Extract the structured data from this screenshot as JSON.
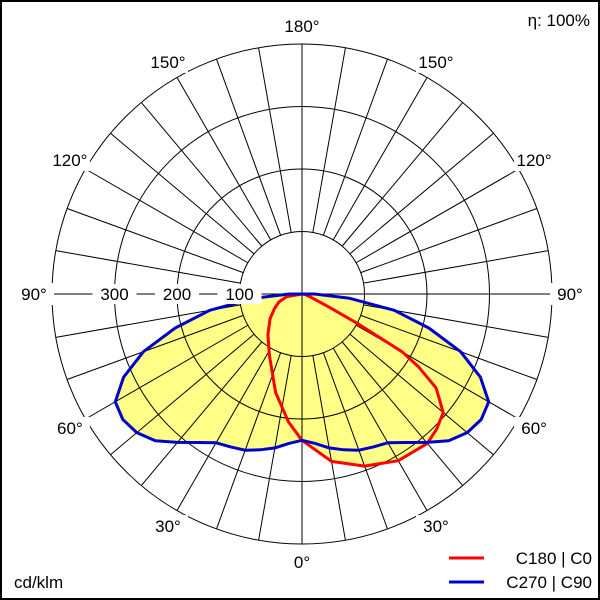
{
  "chart_data": {
    "type": "polar",
    "unit_label": "cd/klm",
    "efficiency_label": "η: 100%",
    "radial_ticks": [
      100,
      200,
      300
    ],
    "radial_max": 400,
    "radial_tick_labels": [
      "100",
      "200",
      "300"
    ],
    "angle_labels": [
      "0°",
      "30°",
      "60°",
      "90°",
      "120°",
      "150°",
      "180°"
    ],
    "fill_color": "#ffff88",
    "series": [
      {
        "name": "C180 | C0",
        "color": "#ff0000",
        "right_plane": {
          "gamma": [
            0,
            10,
            20,
            30,
            40,
            45,
            50,
            55,
            58,
            60,
            62,
            64,
            70,
            80,
            90
          ],
          "cd": [
            234,
            272,
            293,
            308,
            312,
            305,
            295,
            262,
            220,
            185,
            100,
            50,
            15,
            5,
            0
          ]
        },
        "left_plane": {
          "gamma": [
            0,
            6,
            15,
            28,
            40,
            52,
            62,
            71,
            80,
            90
          ],
          "cd": [
            234,
            206,
            163,
            111,
            85,
            65,
            50,
            39,
            25,
            0
          ]
        }
      },
      {
        "name": "C270 | C90",
        "color": "#0000cc",
        "right_plane": {
          "gamma": [
            0,
            5,
            10,
            15,
            20,
            25,
            30,
            35,
            40,
            45,
            50,
            55,
            60,
            65,
            70,
            75,
            80,
            85,
            90
          ],
          "cd": [
            234,
            240,
            250,
            258,
            266,
            270,
            275,
            290,
            310,
            332,
            345,
            350,
            345,
            315,
            270,
            210,
            150,
            75,
            20
          ]
        },
        "left_plane": {
          "gamma": [
            0,
            5,
            10,
            15,
            20,
            25,
            30,
            35,
            40,
            45,
            50,
            55,
            60,
            65,
            70,
            75,
            80,
            85,
            90
          ],
          "cd": [
            234,
            240,
            250,
            258,
            266,
            270,
            275,
            290,
            310,
            332,
            345,
            350,
            345,
            315,
            270,
            210,
            150,
            75,
            20
          ]
        }
      }
    ]
  }
}
